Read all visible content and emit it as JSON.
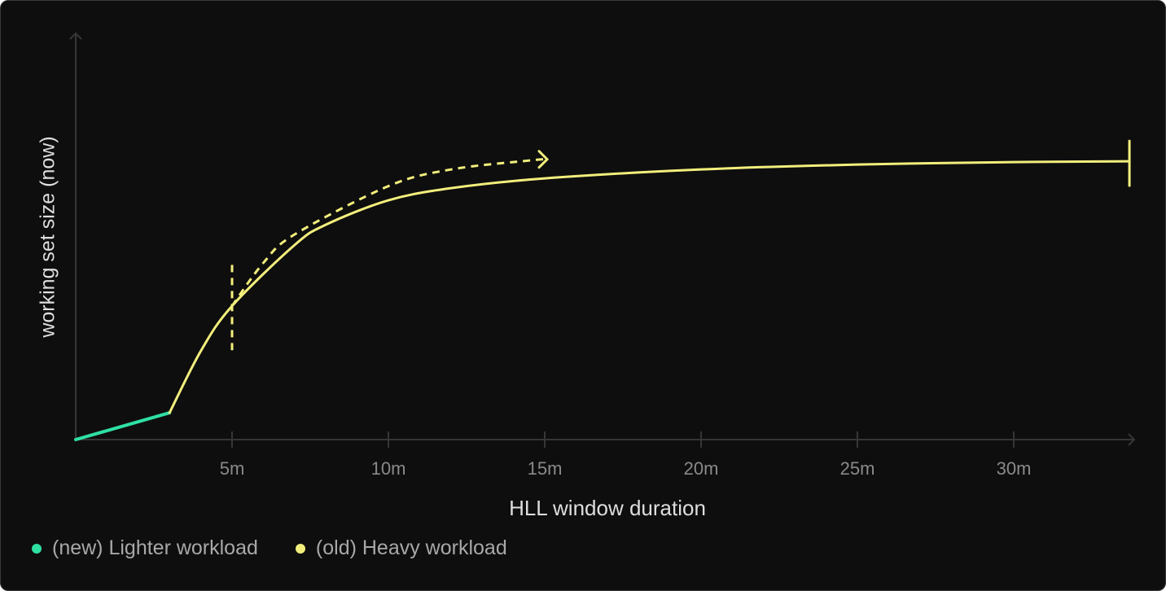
{
  "chart_data": {
    "type": "line",
    "xlabel": "HLL window duration",
    "ylabel": "working set size (now)",
    "x_unit": "minutes",
    "xlim": [
      0,
      34
    ],
    "ylim": [
      0,
      100
    ],
    "x_ticks": [
      {
        "value": 5,
        "label": "5m"
      },
      {
        "value": 10,
        "label": "10m"
      },
      {
        "value": 15,
        "label": "15m"
      },
      {
        "value": 20,
        "label": "20m"
      },
      {
        "value": 25,
        "label": "25m"
      },
      {
        "value": 30,
        "label": "30m"
      }
    ],
    "y_ticks": [],
    "grid": false,
    "legend_placement": "bottom-left",
    "series": [
      {
        "name": "(new) Lighter workload",
        "color": "#2fe0a3",
        "points": [
          [
            0,
            0
          ],
          [
            3,
            6.6
          ]
        ]
      },
      {
        "name": "(old) Heavy workload",
        "color": "#f2ee7c",
        "points": [
          [
            3,
            6.6
          ],
          [
            4,
            21.8
          ],
          [
            5,
            32.9
          ],
          [
            7,
            47.9
          ],
          [
            8,
            52.9
          ],
          [
            10,
            58.9
          ],
          [
            12,
            61.9
          ],
          [
            15,
            64.3
          ],
          [
            20,
            66.5
          ],
          [
            25,
            67.7
          ],
          [
            30,
            68.3
          ],
          [
            33.7,
            68.5
          ]
        ],
        "end_marker": "bar"
      }
    ],
    "annotations": [
      {
        "type": "dashed-vertical-line",
        "x": 5,
        "y_range": [
          22,
          43
        ],
        "color": "#f2ee7c"
      },
      {
        "type": "dashed-arrow",
        "color": "#f2ee7c",
        "points": [
          [
            5,
            32.9
          ],
          [
            6,
            43.5
          ],
          [
            7,
            50.5
          ],
          [
            10,
            62.4
          ],
          [
            12,
            66.5
          ],
          [
            14.5,
            68.7
          ],
          [
            15,
            69
          ]
        ]
      }
    ]
  }
}
